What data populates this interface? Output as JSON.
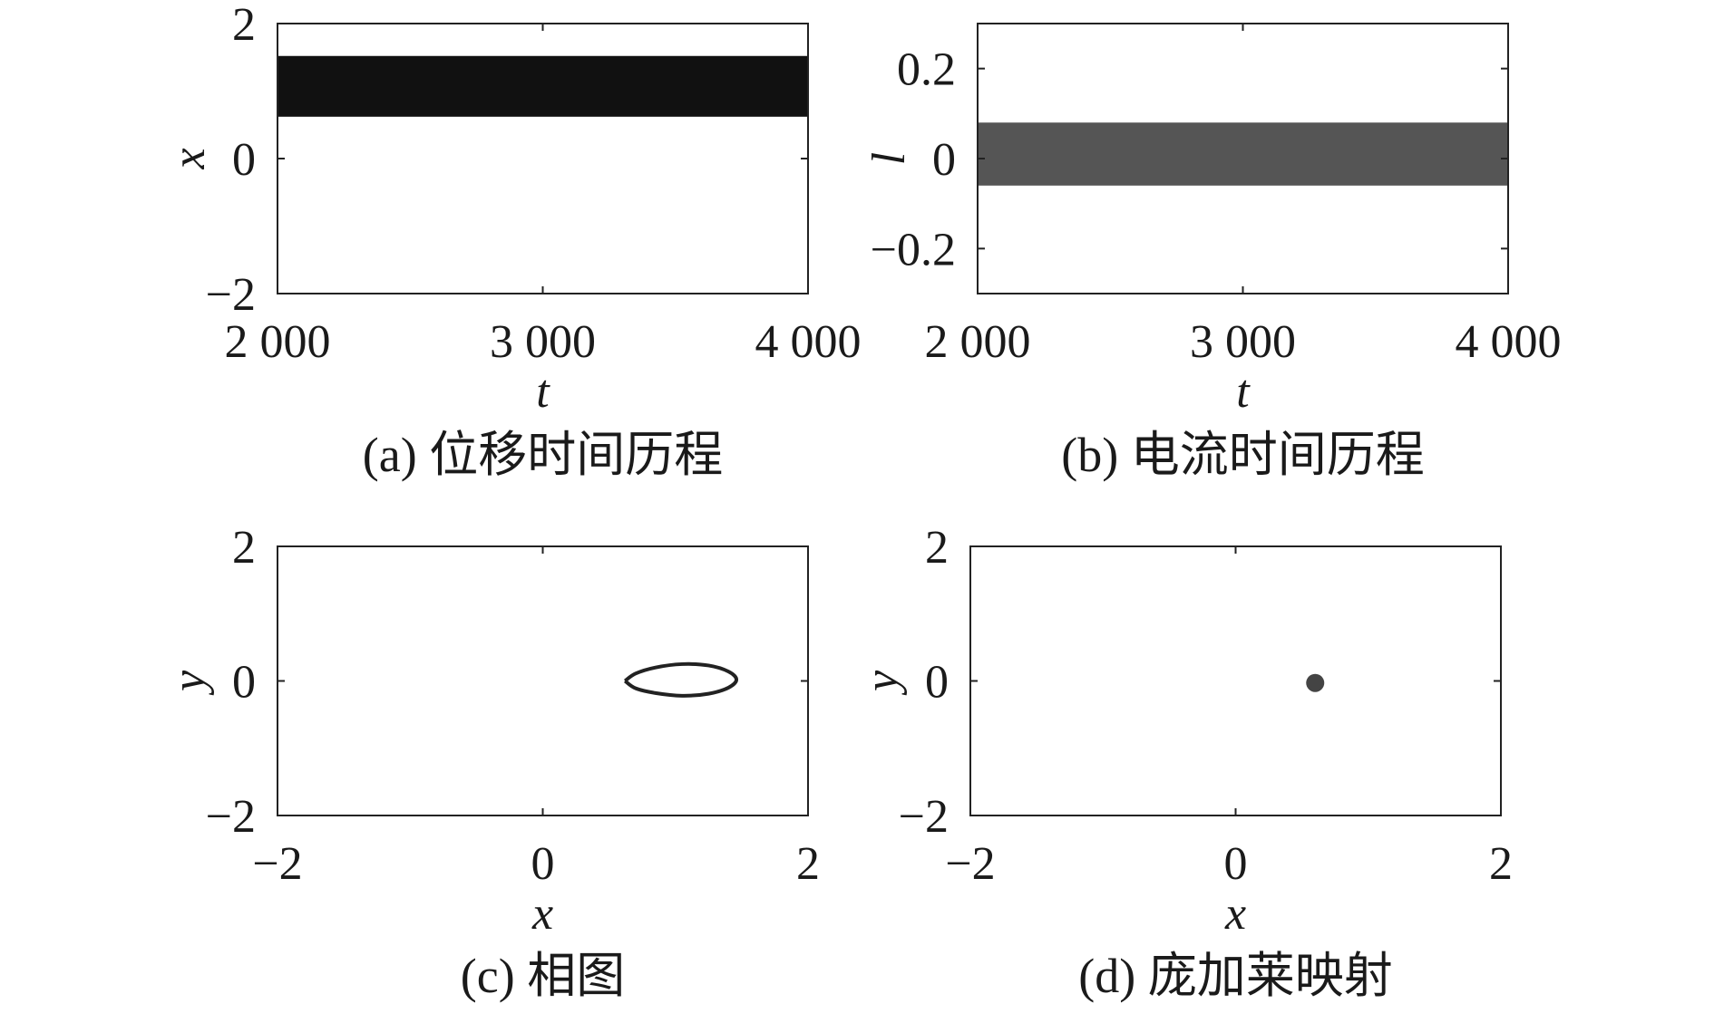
{
  "chart_data": [
    {
      "type": "area",
      "panel": "a",
      "caption": "(a) 位移时间历程",
      "xlabel": "t",
      "ylabel": "x",
      "xlim": [
        2000,
        4000
      ],
      "ylim": [
        -2,
        2
      ],
      "xticks": [
        2000,
        3000,
        4000
      ],
      "xtick_labels": [
        "2 000",
        "3 000",
        "4 000"
      ],
      "yticks": [
        -2,
        0,
        2
      ],
      "ytick_labels": [
        "−2",
        "0",
        "2"
      ],
      "grid": false,
      "band": {
        "x": [
          2000,
          4000
        ],
        "y_min": 0.62,
        "y_max": 1.52,
        "color": "#111111"
      }
    },
    {
      "type": "area",
      "panel": "b",
      "caption": "(b) 电流时间历程",
      "xlabel": "t",
      "ylabel": "l",
      "xlim": [
        2000,
        4000
      ],
      "ylim": [
        -0.3,
        0.3
      ],
      "xticks": [
        2000,
        3000,
        4000
      ],
      "xtick_labels": [
        "2 000",
        "3 000",
        "4 000"
      ],
      "yticks": [
        -0.2,
        0,
        0.2
      ],
      "ytick_labels": [
        "−0.2",
        "0",
        "0.2"
      ],
      "grid": false,
      "band": {
        "x": [
          2000,
          4000
        ],
        "y_min": -0.06,
        "y_max": 0.08,
        "color": "#555555"
      }
    },
    {
      "type": "line",
      "panel": "c",
      "caption": "(c) 相图",
      "xlabel": "x",
      "ylabel": "y",
      "xlim": [
        -2,
        2
      ],
      "ylim": [
        -2,
        2
      ],
      "xticks": [
        -2,
        0,
        2
      ],
      "xtick_labels": [
        "−2",
        "0",
        "2"
      ],
      "yticks": [
        -2,
        0,
        2
      ],
      "ytick_labels": [
        "−2",
        "0",
        "2"
      ],
      "grid": false,
      "series": [
        {
          "color": "#222222",
          "points": [
            [
              0.62,
              0.0
            ],
            [
              0.7,
              0.11
            ],
            [
              0.85,
              0.2
            ],
            [
              1.05,
              0.25
            ],
            [
              1.25,
              0.23
            ],
            [
              1.4,
              0.14
            ],
            [
              1.46,
              0.02
            ],
            [
              1.4,
              -0.1
            ],
            [
              1.25,
              -0.19
            ],
            [
              1.05,
              -0.22
            ],
            [
              0.85,
              -0.18
            ],
            [
              0.7,
              -0.11
            ],
            [
              0.62,
              0.0
            ]
          ]
        }
      ]
    },
    {
      "type": "scatter",
      "panel": "d",
      "caption": "(d) 庞加莱映射",
      "xlabel": "x",
      "ylabel": "y",
      "xlim": [
        -2,
        2
      ],
      "ylim": [
        -2,
        2
      ],
      "xticks": [
        -2,
        0,
        2
      ],
      "xtick_labels": [
        "−2",
        "0",
        "2"
      ],
      "yticks": [
        -2,
        0,
        2
      ],
      "ytick_labels": [
        "−2",
        "0",
        "2"
      ],
      "grid": false,
      "series": [
        {
          "color": "#444444",
          "points": [
            [
              0.6,
              -0.03
            ]
          ]
        }
      ]
    }
  ]
}
